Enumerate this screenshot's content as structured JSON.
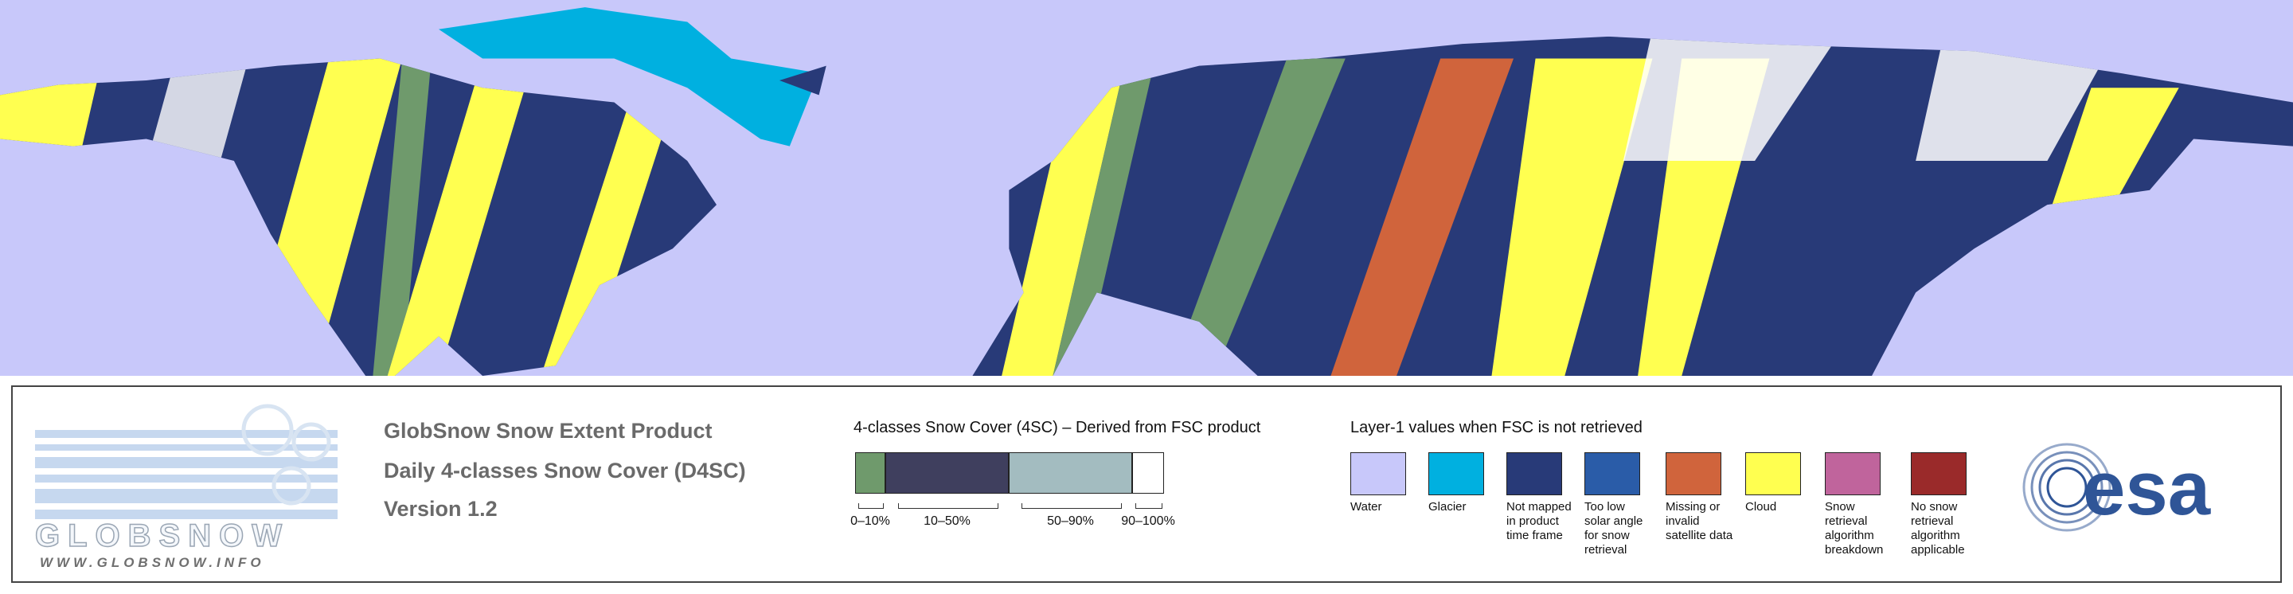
{
  "logo": {
    "name": "GLOBSNOW",
    "url": "WWW.GLOBSNOW.INFO"
  },
  "product": {
    "title": "GlobSnow Snow Extent Product",
    "subtitle": "Daily 4-classes Snow Cover (D4SC)",
    "version": "Version 1.2"
  },
  "snow_classes": {
    "title": "4-classes Snow Cover (4SC) – Derived from FSC product",
    "classes": [
      {
        "label": "0–10%",
        "color": "#6f9a6c"
      },
      {
        "label": "10–50%",
        "color": "#3f3f5e"
      },
      {
        "label": "50–90%",
        "color": "#a3bcc0"
      },
      {
        "label": "90–100%",
        "color": "#ffffff"
      }
    ]
  },
  "layer1": {
    "title": "Layer-1 values when FSC is not retrieved",
    "classes": [
      {
        "label": "Water",
        "color": "#c8c8fa"
      },
      {
        "label": "Glacier",
        "color": "#00b0e0"
      },
      {
        "label": "Not mapped in product time frame",
        "color": "#283a78"
      },
      {
        "label": "Too low solar angle for snow retrieval",
        "color": "#2a5ca8"
      },
      {
        "label": "Missing or invalid satellite data",
        "color": "#d0643c"
      },
      {
        "label": "Cloud",
        "color": "#ffff50"
      },
      {
        "label": "Snow retrieval algorithm breakdown",
        "color": "#c0649c"
      },
      {
        "label": "No snow retrieval algorithm applicable",
        "color": "#9a2a2a"
      }
    ]
  },
  "agency": "esa"
}
